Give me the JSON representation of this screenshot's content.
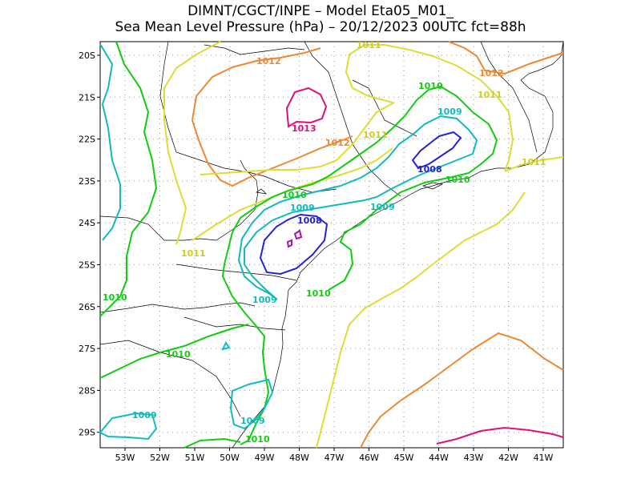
{
  "title": {
    "line1": "DIMNT/CGCT/INPE –  Model Eta05_M01_",
    "line2": "Sea Mean Level Pressure (hPa) – 20/12/2023 00UTC fct=88h"
  },
  "axes": {
    "lat_labels": [
      "20S",
      "21S",
      "22S",
      "23S",
      "24S",
      "25S",
      "26S",
      "27S",
      "28S",
      "29S"
    ],
    "lon_labels": [
      "53W",
      "52W",
      "51W",
      "50W",
      "49W",
      "48W",
      "47W",
      "46W",
      "45W",
      "44W",
      "43W",
      "42W",
      "41W"
    ]
  },
  "colors": {
    "c1008": "#2222dd",
    "c1009": "#11bbbb",
    "c1010": "#11cc11",
    "c1011": "#dddd33",
    "c1012": "#ee8833",
    "c1013": "#dd1177",
    "c_low": "#aa11aa",
    "coast": "#000000",
    "grid": "#999999"
  },
  "contour_labels": [
    {
      "text": "1012",
      "level": "1012"
    },
    {
      "text": "1011",
      "level": "1011"
    },
    {
      "text": "1012",
      "level": "1012"
    },
    {
      "text": "1011",
      "level": "1011"
    },
    {
      "text": "1010",
      "level": "1010"
    },
    {
      "text": "1009",
      "level": "1009"
    },
    {
      "text": "1013",
      "level": "1013"
    },
    {
      "text": "1012",
      "level": "1012"
    },
    {
      "text": "1011",
      "level": "1011"
    },
    {
      "text": "1008",
      "level": "1008"
    },
    {
      "text": "1010",
      "level": "1010"
    },
    {
      "text": "1011",
      "level": "1011"
    },
    {
      "text": "1010",
      "level": "1010"
    },
    {
      "text": "1009",
      "level": "1009"
    },
    {
      "text": "1009",
      "level": "1009"
    },
    {
      "text": "1008",
      "level": "1008"
    },
    {
      "text": "1011",
      "level": "1011"
    },
    {
      "text": "1010",
      "level": "1010"
    },
    {
      "text": "1010",
      "level": "1010"
    },
    {
      "text": "1009",
      "level": "1009"
    },
    {
      "text": "1010",
      "level": "1010"
    },
    {
      "text": "1009",
      "level": "1009"
    },
    {
      "text": "1009",
      "level": "1009"
    },
    {
      "text": "1010",
      "level": "1010"
    }
  ]
}
